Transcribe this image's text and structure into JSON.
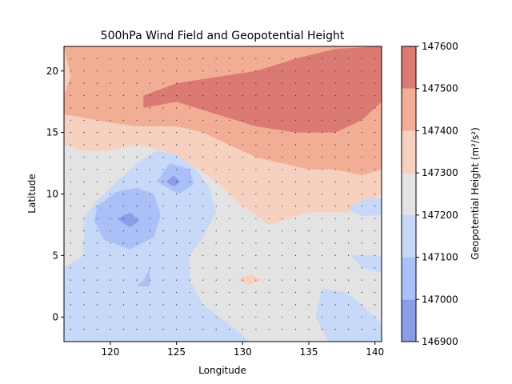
{
  "chart_data": {
    "type": "heatmap",
    "title": "500hPa Wind Field and Geopotential Height",
    "xlabel": "Longitude",
    "ylabel": "Latitude",
    "xlim": [
      116.5,
      140.5
    ],
    "ylim": [
      -2,
      22
    ],
    "x_ticks": [
      120,
      125,
      130,
      135,
      140
    ],
    "y_ticks": [
      0,
      5,
      10,
      15,
      20
    ],
    "vector_grid": {
      "x_start": 117,
      "x_end": 140,
      "x_step": 1,
      "y_start": -1,
      "y_end": 21,
      "y_step": 1
    },
    "colorbar": {
      "label": "Geopotential Height (m²/s²)",
      "levels": [
        146900,
        147000,
        147100,
        147200,
        147300,
        147400,
        147500,
        147600
      ],
      "colors": [
        "#8a9ee6",
        "#aac0f7",
        "#c7d8f8",
        "#e3e3e3",
        "#f6d1c0",
        "#f2ad95",
        "#da7a72"
      ]
    },
    "contour_regions": [
      {
        "level": "147200-147300",
        "polygon": [
          [
            116.5,
            22
          ],
          [
            140.5,
            22
          ],
          [
            140.5,
            -2
          ],
          [
            116.5,
            -2
          ]
        ]
      },
      {
        "level": "147300-147400",
        "polygon": [
          [
            116.5,
            22
          ],
          [
            140.5,
            22
          ],
          [
            140.5,
            10
          ],
          [
            138,
            8.5
          ],
          [
            135,
            8.5
          ],
          [
            132,
            7.5
          ],
          [
            130,
            9
          ],
          [
            128,
            11
          ],
          [
            126,
            12.5
          ],
          [
            124,
            13.5
          ],
          [
            122,
            14
          ],
          [
            120,
            13.5
          ],
          [
            118,
            13.5
          ],
          [
            116.5,
            14
          ]
        ]
      },
      {
        "level": "147400-147500",
        "polygon": [
          [
            116.5,
            22
          ],
          [
            140.5,
            22
          ],
          [
            140.5,
            12
          ],
          [
            139,
            11.5
          ],
          [
            137,
            12
          ],
          [
            135,
            12
          ],
          [
            133,
            12.5
          ],
          [
            131,
            13
          ],
          [
            129,
            14
          ],
          [
            127,
            15
          ],
          [
            125,
            15.5
          ],
          [
            122,
            15.5
          ],
          [
            120,
            15.8
          ],
          [
            118,
            16.2
          ],
          [
            116.5,
            16.5
          ],
          [
            116.5,
            18
          ],
          [
            117,
            19.6
          ]
        ]
      },
      {
        "level": "147500-147600",
        "polygon": [
          [
            122.5,
            17
          ],
          [
            125,
            17.5
          ],
          [
            128,
            16.5
          ],
          [
            131,
            15.5
          ],
          [
            134,
            15
          ],
          [
            137,
            15
          ],
          [
            139,
            16
          ],
          [
            140.5,
            17.5
          ],
          [
            140.5,
            22
          ],
          [
            137,
            21.8
          ],
          [
            134,
            21
          ],
          [
            131,
            20
          ],
          [
            128,
            19.5
          ],
          [
            125,
            19
          ],
          [
            122.5,
            18
          ]
        ]
      },
      {
        "level": "147100-147200",
        "polygon": [
          [
            116.5,
            -2
          ],
          [
            116.5,
            4
          ],
          [
            118,
            5
          ],
          [
            118,
            8
          ],
          [
            119,
            9.5
          ],
          [
            120.5,
            11
          ],
          [
            122,
            12.5
          ],
          [
            123.5,
            13.5
          ],
          [
            125,
            13.2
          ],
          [
            126.5,
            12
          ],
          [
            127.5,
            10.5
          ],
          [
            128,
            8.5
          ],
          [
            127,
            6.5
          ],
          [
            126,
            5
          ],
          [
            126,
            3
          ],
          [
            127,
            1
          ],
          [
            129.5,
            -1
          ],
          [
            130.5,
            -2
          ]
        ]
      },
      {
        "level": "147100-147200",
        "polygon": [
          [
            136,
            2.3
          ],
          [
            137.8,
            2
          ],
          [
            139,
            1
          ],
          [
            140.5,
            -0.5
          ],
          [
            140.5,
            -2
          ],
          [
            136.5,
            -2
          ],
          [
            135.5,
            0
          ]
        ]
      },
      {
        "level": "147100-147200",
        "polygon": [
          [
            138,
            8.8
          ],
          [
            139,
            9.5
          ],
          [
            140.5,
            9.7
          ],
          [
            140.5,
            8.3
          ],
          [
            139,
            8.2
          ]
        ]
      },
      {
        "level": "147100-147200",
        "polygon": [
          [
            138.2,
            5
          ],
          [
            140.5,
            5
          ],
          [
            140.5,
            3.6
          ],
          [
            139,
            4
          ]
        ]
      },
      {
        "level": "147000-147100",
        "polygon": [
          [
            119,
            9
          ],
          [
            120.5,
            10.2
          ],
          [
            122,
            10.5
          ],
          [
            123.3,
            10
          ],
          [
            123.8,
            8.3
          ],
          [
            123.3,
            6.5
          ],
          [
            121.5,
            5.5
          ],
          [
            119.5,
            6.3
          ],
          [
            118.8,
            7.8
          ]
        ]
      },
      {
        "level": "147000-147100",
        "polygon": [
          [
            123.5,
            11
          ],
          [
            124.5,
            12.5
          ],
          [
            126,
            12
          ],
          [
            126.3,
            10.8
          ],
          [
            125.2,
            10
          ]
        ]
      },
      {
        "level": "147000-147100",
        "polygon": [
          [
            122.5,
            3
          ],
          [
            123,
            4
          ],
          [
            123,
            2.5
          ],
          [
            122,
            2.5
          ]
        ]
      },
      {
        "level": "146900-147000",
        "polygon": [
          [
            120.5,
            8
          ],
          [
            121.5,
            8.5
          ],
          [
            122.2,
            7.8
          ],
          [
            121.5,
            7.3
          ]
        ]
      },
      {
        "level": "146900-147000",
        "polygon": [
          [
            124.2,
            11
          ],
          [
            124.8,
            11.5
          ],
          [
            125.3,
            11
          ],
          [
            124.8,
            10.6
          ]
        ]
      },
      {
        "level": "147300-147400",
        "polygon": [
          [
            129.5,
            3
          ],
          [
            130.5,
            3.5
          ],
          [
            131.5,
            3
          ],
          [
            130.5,
            2.6
          ]
        ]
      }
    ]
  }
}
